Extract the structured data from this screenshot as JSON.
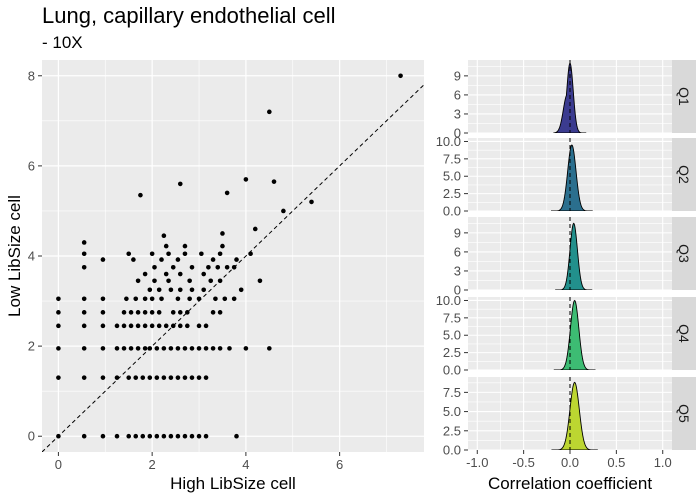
{
  "chart_data": [
    {
      "type": "scatter",
      "title": "Lung, capillary endothelial cell",
      "subtitle": "- 10X",
      "xlabel": "High LibSize cell",
      "ylabel": "Low LibSize cell",
      "xlim": [
        -0.35,
        7.8
      ],
      "ylim": [
        -0.35,
        8.35
      ],
      "xticks": [
        0,
        2,
        4,
        6
      ],
      "yticks": [
        0,
        2,
        4,
        6,
        8
      ],
      "grid": true,
      "reference_line": {
        "slope": 1,
        "intercept": 0,
        "style": "dashed"
      },
      "points": [
        [
          0,
          0
        ],
        [
          0.55,
          0
        ],
        [
          0.95,
          0
        ],
        [
          1.25,
          0
        ],
        [
          1.5,
          0
        ],
        [
          1.65,
          0
        ],
        [
          1.8,
          0
        ],
        [
          1.95,
          0
        ],
        [
          2.1,
          0
        ],
        [
          2.25,
          0
        ],
        [
          2.4,
          0
        ],
        [
          2.55,
          0
        ],
        [
          2.7,
          0
        ],
        [
          2.85,
          0
        ],
        [
          3.0,
          0
        ],
        [
          3.15,
          0
        ],
        [
          3.8,
          0
        ],
        [
          0,
          1.3
        ],
        [
          0.55,
          1.3
        ],
        [
          0.95,
          1.3
        ],
        [
          1.25,
          1.3
        ],
        [
          1.5,
          1.3
        ],
        [
          1.65,
          1.3
        ],
        [
          1.8,
          1.3
        ],
        [
          1.95,
          1.3
        ],
        [
          2.1,
          1.3
        ],
        [
          2.25,
          1.3
        ],
        [
          2.4,
          1.3
        ],
        [
          2.55,
          1.3
        ],
        [
          2.7,
          1.3
        ],
        [
          2.85,
          1.3
        ],
        [
          3.0,
          1.3
        ],
        [
          3.15,
          1.3
        ],
        [
          0,
          1.95
        ],
        [
          0.55,
          1.95
        ],
        [
          0.95,
          1.95
        ],
        [
          1.25,
          1.95
        ],
        [
          1.4,
          1.95
        ],
        [
          1.55,
          1.95
        ],
        [
          1.7,
          1.95
        ],
        [
          1.85,
          1.95
        ],
        [
          1.95,
          1.95
        ],
        [
          2.1,
          1.95
        ],
        [
          2.25,
          1.95
        ],
        [
          2.4,
          1.95
        ],
        [
          2.55,
          1.95
        ],
        [
          2.7,
          1.95
        ],
        [
          2.85,
          1.95
        ],
        [
          3.0,
          1.95
        ],
        [
          3.15,
          1.95
        ],
        [
          3.3,
          1.95
        ],
        [
          3.45,
          1.95
        ],
        [
          3.65,
          1.95
        ],
        [
          4.0,
          1.95
        ],
        [
          4.5,
          1.95
        ],
        [
          0,
          2.45
        ],
        [
          0.55,
          2.45
        ],
        [
          0.95,
          2.45
        ],
        [
          1.25,
          2.45
        ],
        [
          1.4,
          2.45
        ],
        [
          1.55,
          2.45
        ],
        [
          1.7,
          2.45
        ],
        [
          1.85,
          2.45
        ],
        [
          2.0,
          2.45
        ],
        [
          2.15,
          2.45
        ],
        [
          2.3,
          2.45
        ],
        [
          2.45,
          2.45
        ],
        [
          2.6,
          2.45
        ],
        [
          2.75,
          2.45
        ],
        [
          3.0,
          2.45
        ],
        [
          3.15,
          2.45
        ],
        [
          0,
          2.75
        ],
        [
          0.55,
          2.75
        ],
        [
          0.95,
          2.75
        ],
        [
          1.4,
          2.75
        ],
        [
          1.55,
          2.75
        ],
        [
          1.7,
          2.75
        ],
        [
          1.85,
          2.75
        ],
        [
          2.0,
          2.75
        ],
        [
          2.15,
          2.75
        ],
        [
          2.45,
          2.75
        ],
        [
          2.6,
          2.75
        ],
        [
          2.75,
          2.75
        ],
        [
          3.3,
          2.75
        ],
        [
          3.45,
          2.75
        ],
        [
          0,
          3.05
        ],
        [
          0.55,
          3.05
        ],
        [
          0.95,
          3.05
        ],
        [
          1.45,
          3.05
        ],
        [
          1.65,
          3.05
        ],
        [
          1.85,
          3.05
        ],
        [
          2.0,
          3.05
        ],
        [
          2.2,
          3.05
        ],
        [
          2.55,
          3.05
        ],
        [
          2.8,
          3.05
        ],
        [
          3.0,
          3.05
        ],
        [
          3.35,
          3.05
        ],
        [
          3.55,
          3.05
        ],
        [
          3.75,
          3.05
        ],
        [
          1.95,
          3.25
        ],
        [
          2.15,
          3.25
        ],
        [
          2.4,
          3.25
        ],
        [
          2.6,
          3.25
        ],
        [
          2.85,
          3.25
        ],
        [
          3.1,
          3.25
        ],
        [
          3.9,
          3.25
        ],
        [
          1.7,
          3.45
        ],
        [
          2.05,
          3.45
        ],
        [
          2.35,
          3.45
        ],
        [
          2.8,
          3.45
        ],
        [
          3.25,
          3.45
        ],
        [
          3.45,
          3.45
        ],
        [
          4.3,
          3.45
        ],
        [
          1.85,
          3.6
        ],
        [
          2.3,
          3.6
        ],
        [
          2.6,
          3.6
        ],
        [
          3.1,
          3.6
        ],
        [
          0.55,
          3.75
        ],
        [
          2.05,
          3.75
        ],
        [
          2.45,
          3.75
        ],
        [
          2.85,
          3.75
        ],
        [
          3.2,
          3.75
        ],
        [
          3.4,
          3.75
        ],
        [
          3.6,
          3.75
        ],
        [
          3.75,
          3.75
        ],
        [
          0.95,
          3.92
        ],
        [
          1.6,
          3.92
        ],
        [
          2.2,
          3.92
        ],
        [
          2.55,
          3.92
        ],
        [
          3.3,
          3.92
        ],
        [
          3.8,
          3.92
        ],
        [
          0.55,
          4.05
        ],
        [
          1.5,
          4.05
        ],
        [
          2.0,
          4.05
        ],
        [
          2.35,
          4.05
        ],
        [
          2.7,
          4.05
        ],
        [
          3.05,
          4.05
        ],
        [
          3.45,
          4.05
        ],
        [
          4.1,
          4.05
        ],
        [
          2.3,
          4.22
        ],
        [
          2.7,
          4.22
        ],
        [
          3.5,
          4.22
        ],
        [
          0.55,
          4.3
        ],
        [
          2.25,
          4.45
        ],
        [
          3.5,
          4.5
        ],
        [
          4.2,
          4.6
        ],
        [
          4.8,
          5.0
        ],
        [
          5.4,
          5.2
        ],
        [
          3.6,
          5.4
        ],
        [
          1.75,
          5.35
        ],
        [
          2.6,
          5.6
        ],
        [
          4.6,
          5.65
        ],
        [
          4.0,
          5.7
        ],
        [
          4.5,
          7.2
        ],
        [
          7.3,
          8.0
        ]
      ]
    },
    {
      "type": "area",
      "xlabel": "Correlation coefficient",
      "xlim": [
        -1.1,
        1.1
      ],
      "xticks": [
        -1.0,
        -0.5,
        0.0,
        0.5,
        1.0
      ],
      "xtick_labels": [
        "-1.0",
        "-0.5",
        "0.0",
        "0.5",
        "1.0"
      ],
      "reference_line": {
        "x": 0,
        "style": "dashed"
      },
      "panels": [
        {
          "name": "Q1",
          "fill": "#3b3b8f",
          "ylim": [
            0,
            11.5
          ],
          "yticks": [
            0,
            3,
            6,
            9
          ],
          "mean": 0.0,
          "sd": 0.035,
          "peak": 11.0,
          "shoulder": true
        },
        {
          "name": "Q2",
          "fill": "#2b6f8e",
          "ylim": [
            0,
            10.5
          ],
          "yticks": [
            0,
            2.5,
            5.0,
            7.5,
            10.0
          ],
          "ytick_labels": [
            "0.0",
            "2.5",
            "5.0",
            "7.5",
            "10.0"
          ],
          "mean": 0.02,
          "sd": 0.045,
          "peak": 9.5
        },
        {
          "name": "Q3",
          "fill": "#22908c",
          "ylim": [
            0,
            11.5
          ],
          "yticks": [
            0,
            3,
            6,
            9
          ],
          "mean": 0.04,
          "sd": 0.04,
          "peak": 10.5
        },
        {
          "name": "Q4",
          "fill": "#3dbc73",
          "ylim": [
            0,
            10.5
          ],
          "yticks": [
            0,
            2.5,
            5.0,
            7.5,
            10.0
          ],
          "ytick_labels": [
            "0.0",
            "2.5",
            "5.0",
            "7.5",
            "10.0"
          ],
          "mean": 0.05,
          "sd": 0.045,
          "peak": 10.0
        },
        {
          "name": "Q5",
          "fill": "#bcd631",
          "ylim": [
            0,
            9.5
          ],
          "yticks": [
            0,
            2.5,
            5.0,
            7.5
          ],
          "ytick_labels": [
            "0.0",
            "2.5",
            "5.0",
            "7.5"
          ],
          "mean": 0.05,
          "sd": 0.05,
          "peak": 8.8
        }
      ]
    }
  ]
}
